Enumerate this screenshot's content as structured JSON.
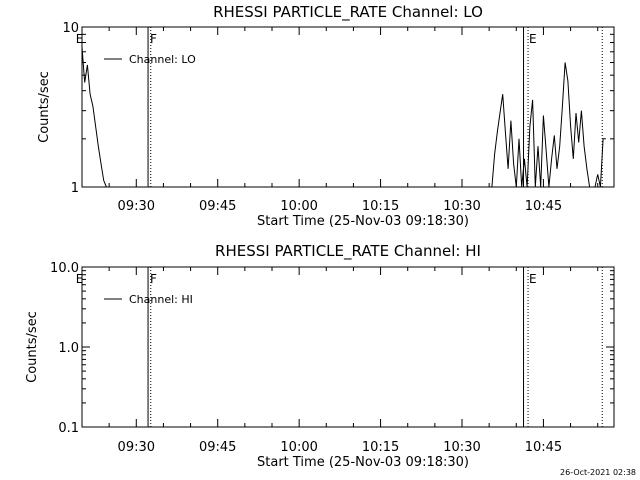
{
  "chart_data": [
    {
      "type": "line",
      "title": "RHESSI PARTICLE_RATE Channel: LO",
      "xlabel": "Start Time (25-Nov-03 09:18:30)",
      "ylabel": "Counts/sec",
      "yscale": "log",
      "ylim": [
        1,
        10
      ],
      "xlim": [
        "09:20",
        "10:58"
      ],
      "xticks": [
        "09:30",
        "09:45",
        "10:00",
        "10:15",
        "10:30",
        "10:45"
      ],
      "yticks": [
        "1",
        "10"
      ],
      "legend": "top-left",
      "grid": false,
      "series": [
        {
          "name": "Channel: LO",
          "x": [
            "09:20",
            "09:20:30",
            "09:21",
            "09:21:30",
            "09:22",
            "09:22:30",
            "09:23",
            "09:23:30",
            "09:24",
            "09:24:30",
            "10:35:30",
            "10:36",
            "10:36:30",
            "10:37",
            "10:37:30",
            "10:38",
            "10:38:30",
            "10:39",
            "10:39:30",
            "10:40",
            "10:40:30",
            "10:41",
            "10:41:30",
            "10:42",
            "10:42:30",
            "10:43",
            "10:43:30",
            "10:44",
            "10:44:30",
            "10:45",
            "10:45:30",
            "10:46",
            "10:46:30",
            "10:47",
            "10:47:30",
            "10:48",
            "10:48:30",
            "10:49",
            "10:49:30",
            "10:50",
            "10:50:30",
            "10:51",
            "10:51:30",
            "10:52",
            "10:52:30",
            "10:53",
            "10:53:30",
            "10:54",
            "10:54:30",
            "10:55",
            "10:55:30",
            "10:56",
            "10:56:30"
          ],
          "values": [
            7.5,
            4.5,
            5.8,
            3.8,
            3.2,
            2.4,
            1.8,
            1.4,
            1.1,
            1.0,
            1.0,
            1.6,
            2.2,
            2.9,
            3.8,
            2.2,
            1.3,
            2.6,
            1.4,
            1.0,
            2.0,
            1.0,
            1.5,
            1.0,
            2.4,
            3.5,
            1.0,
            1.8,
            1.0,
            2.8,
            1.7,
            1.0,
            1.5,
            2.1,
            1.3,
            1.8,
            3.2,
            6.0,
            4.6,
            2.4,
            1.5,
            2.9,
            1.9,
            3.0,
            1.8,
            1.3,
            1.0,
            1.0,
            1.0,
            1.2,
            1.0,
            2.0,
            2.0
          ]
        }
      ],
      "annotations": [
        {
          "label": "E",
          "x": "09:18:40"
        },
        {
          "label": "F",
          "x": "09:32:20"
        },
        {
          "label": "E",
          "x": "10:42:10"
        }
      ],
      "vlines_solid": [
        "09:32:10",
        "10:41:20"
      ],
      "vlines_dotted": [
        "09:32:40",
        "10:42:10",
        "10:55:50"
      ]
    },
    {
      "type": "line",
      "title": "RHESSI PARTICLE_RATE Channel: HI",
      "xlabel": "Start Time (25-Nov-03 09:18:30)",
      "ylabel": "Counts/sec",
      "yscale": "log",
      "ylim": [
        0.1,
        10
      ],
      "xlim": [
        "09:20",
        "10:58"
      ],
      "xticks": [
        "09:30",
        "09:45",
        "10:00",
        "10:15",
        "10:30",
        "10:45"
      ],
      "yticks": [
        "0.1",
        "1.0",
        "10.0"
      ],
      "legend": "top-left",
      "grid": false,
      "series": [
        {
          "name": "Channel: HI",
          "x": [],
          "values": []
        }
      ],
      "annotations": [
        {
          "label": "E",
          "x": "09:18:40"
        },
        {
          "label": "F",
          "x": "09:32:20"
        },
        {
          "label": "E",
          "x": "10:42:10"
        }
      ],
      "vlines_solid": [
        "09:32:10",
        "10:41:20"
      ],
      "vlines_dotted": [
        "09:32:40",
        "10:42:10",
        "10:55:50"
      ]
    }
  ],
  "footer": {
    "timestamp": "26-Oct-2021 02:38"
  }
}
